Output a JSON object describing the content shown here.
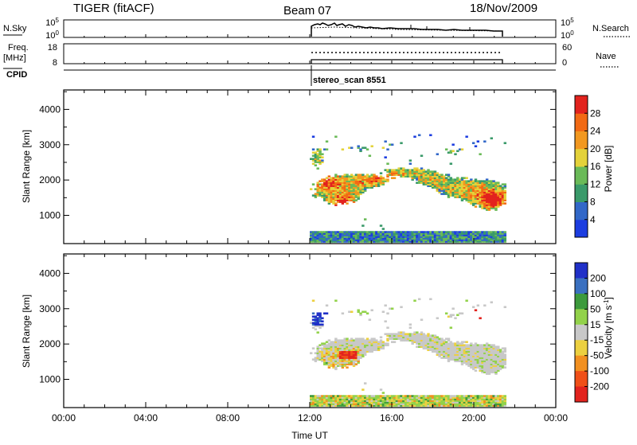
{
  "header": {
    "title": "TIGER (fitACF)",
    "beam": "Beam 07",
    "date": "18/Nov/2009"
  },
  "strip_nsky": {
    "left_label": "N.Sky",
    "left_ticks": [
      "10^5",
      "10^0"
    ],
    "right_ticks": [
      "10^5",
      "10^0"
    ],
    "right_label": "N.Search"
  },
  "strip_freq": {
    "left_label_1": "Freq.",
    "left_label_2": "[MHz]",
    "left_ticks": [
      "18",
      "8"
    ],
    "right_ticks": [
      "60",
      "0"
    ],
    "right_label": "Nave"
  },
  "strip_cpid": {
    "label": "CPID",
    "program": "stereo_scan 8551"
  },
  "colors": {
    "power_scale": [
      "#1c3de0",
      "#3268c8",
      "#3a9a6a",
      "#6aba58",
      "#e4d23a",
      "#f29820",
      "#f26a14",
      "#e2231e"
    ],
    "velocity_scale": [
      "#2030c8",
      "#3a70c0",
      "#3c9a3c",
      "#92d24a",
      "#c8c8c8",
      "#ecd040",
      "#f29020",
      "#f05018",
      "#e2231e"
    ]
  },
  "chart_data": [
    {
      "type": "heatmap",
      "name": "power",
      "xlabel": "",
      "ylabel": "Slant Range [km]",
      "x_range_hours": [
        0,
        24
      ],
      "ylim": [
        200,
        4550
      ],
      "y_ticks": [
        1000,
        2000,
        3000,
        4000
      ],
      "colorbar": {
        "label": "Power [dB]",
        "range": [
          0,
          32
        ],
        "ticks": [
          4,
          8,
          12,
          16,
          20,
          24,
          28
        ]
      },
      "data_window_hours": [
        12.0,
        21.5
      ]
    },
    {
      "type": "heatmap",
      "name": "velocity",
      "xlabel": "Time UT",
      "ylabel": "Slant Range [km]",
      "x_range_hours": [
        0,
        24
      ],
      "x_ticks": [
        "00:00",
        "04:00",
        "08:00",
        "12:00",
        "16:00",
        "20:00",
        "00:00"
      ],
      "ylim": [
        200,
        4550
      ],
      "y_ticks": [
        1000,
        2000,
        3000,
        4000
      ],
      "colorbar": {
        "label": "Velocity [m s^-1]",
        "labels": [
          "200",
          "100",
          "50",
          "15",
          "-15",
          "-50",
          "-100",
          "-200"
        ]
      },
      "data_window_hours": [
        12.0,
        21.5
      ]
    }
  ]
}
